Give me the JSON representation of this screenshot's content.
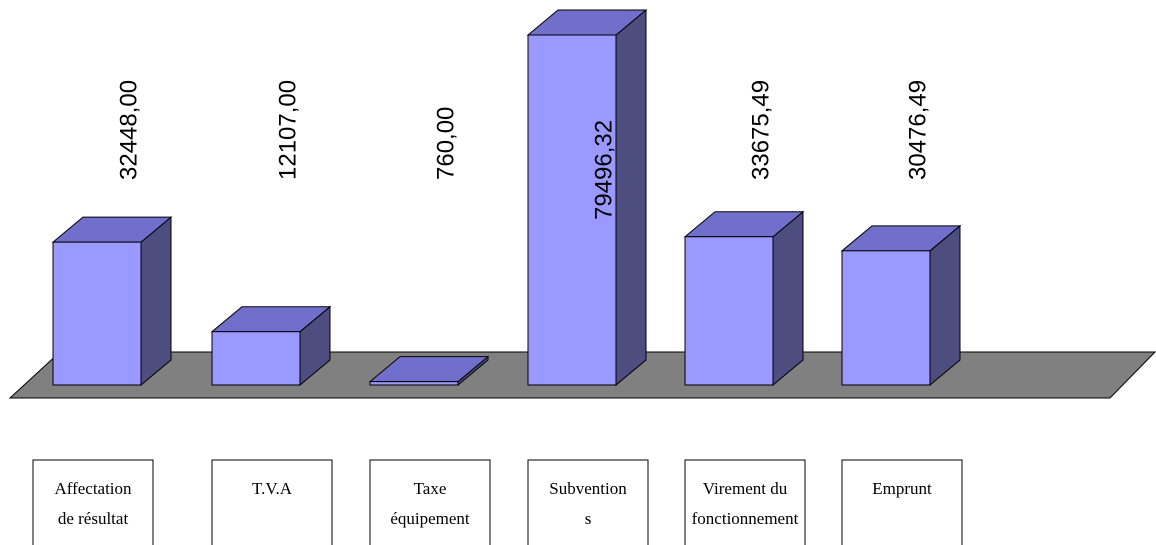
{
  "chart_data": {
    "type": "bar3d",
    "categories": [
      "Affectation\nde résultat",
      "T.V.A",
      "Taxe\néquipement",
      "Subvention\ns",
      "Virement du\nfonctionnement",
      "Emprunt"
    ],
    "values": [
      32448,
      12107,
      760,
      79496.32,
      33675.49,
      30476.49
    ],
    "value_labels": [
      "32448,00",
      "12107,00",
      "760,00",
      "79496,32",
      "33675,49",
      "30476,49"
    ],
    "color": "#9999ff"
  }
}
